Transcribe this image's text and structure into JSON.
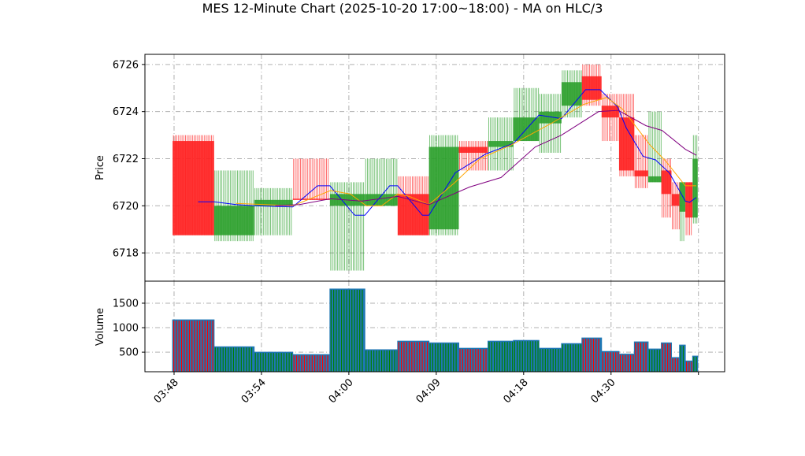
{
  "chart_data": [
    {
      "type": "candlestick",
      "title": "MES 12-Minute Chart (2025-10-20 17:00~18:00) - MA on HLC/3",
      "ylabel": "Price",
      "ylim": [
        6716.8,
        6726.43
      ],
      "yticks": [
        6718,
        6720,
        6722,
        6724,
        6726
      ],
      "x_units": "bar index",
      "xlim": [
        -4,
        75.6
      ],
      "xticks": [
        {
          "x": 0,
          "label": "03:48"
        },
        {
          "x": 12,
          "label": "03:54"
        },
        {
          "x": 24,
          "label": "04:00"
        },
        {
          "x": 36,
          "label": "04:09"
        },
        {
          "x": 48,
          "label": "04:18"
        },
        {
          "x": 60,
          "label": "04:30"
        },
        {
          "x": 72,
          "label": ""
        }
      ],
      "grid": true,
      "up_color": "#2ca02c",
      "down_color": "#ff2020",
      "candles": [
        {
          "x0": -0.2,
          "x1": 5.5,
          "open": 6722.75,
          "high": 6723.0,
          "low": 6718.75,
          "close": 6718.75
        },
        {
          "x0": 5.5,
          "x1": 11.0,
          "open": 6718.75,
          "high": 6721.5,
          "low": 6718.5,
          "close": 6720.0
        },
        {
          "x0": 11.0,
          "x1": 16.3,
          "open": 6720.0,
          "high": 6720.75,
          "low": 6718.75,
          "close": 6720.25
        },
        {
          "x0": 16.3,
          "x1": 21.4,
          "open": 6720.3,
          "high": 6722.0,
          "low": 6720.25,
          "close": 6720.25
        },
        {
          "x0": 21.4,
          "x1": 26.2,
          "open": 6720.0,
          "high": 6721.0,
          "low": 6717.25,
          "close": 6720.5
        },
        {
          "x0": 26.2,
          "x1": 30.7,
          "open": 6720.0,
          "high": 6722.0,
          "low": 6720.0,
          "close": 6720.5
        },
        {
          "x0": 30.7,
          "x1": 35.0,
          "open": 6720.5,
          "high": 6721.25,
          "low": 6718.75,
          "close": 6718.75
        },
        {
          "x0": 35.0,
          "x1": 39.1,
          "open": 6719.0,
          "high": 6723.0,
          "low": 6718.75,
          "close": 6722.5
        },
        {
          "x0": 39.1,
          "x1": 43.1,
          "open": 6722.5,
          "high": 6722.75,
          "low": 6721.5,
          "close": 6722.25
        },
        {
          "x0": 43.1,
          "x1": 46.6,
          "open": 6722.5,
          "high": 6723.75,
          "low": 6721.5,
          "close": 6722.75
        },
        {
          "x0": 46.6,
          "x1": 50.1,
          "open": 6722.75,
          "high": 6725.0,
          "low": 6722.75,
          "close": 6723.75
        },
        {
          "x0": 50.1,
          "x1": 53.2,
          "open": 6723.5,
          "high": 6724.75,
          "low": 6722.25,
          "close": 6724.0
        },
        {
          "x0": 53.2,
          "x1": 56.0,
          "open": 6724.25,
          "high": 6725.75,
          "low": 6723.75,
          "close": 6725.25
        },
        {
          "x0": 56.0,
          "x1": 58.7,
          "open": 6725.5,
          "high": 6726.0,
          "low": 6724.25,
          "close": 6724.5
        },
        {
          "x0": 58.7,
          "x1": 61.1,
          "open": 6724.25,
          "high": 6724.75,
          "low": 6722.75,
          "close": 6723.75
        },
        {
          "x0": 61.1,
          "x1": 63.2,
          "open": 6723.75,
          "high": 6724.75,
          "low": 6721.25,
          "close": 6721.5
        },
        {
          "x0": 63.2,
          "x1": 65.1,
          "open": 6721.5,
          "high": 6723.0,
          "low": 6720.75,
          "close": 6721.25
        },
        {
          "x0": 65.1,
          "x1": 66.9,
          "open": 6721.0,
          "high": 6724.0,
          "low": 6721.0,
          "close": 6721.25
        },
        {
          "x0": 66.9,
          "x1": 68.3,
          "open": 6721.5,
          "high": 6722.0,
          "low": 6719.5,
          "close": 6720.5
        },
        {
          "x0": 68.3,
          "x1": 69.4,
          "open": 6720.5,
          "high": 6721.0,
          "low": 6719.0,
          "close": 6720.0
        },
        {
          "x0": 69.4,
          "x1": 70.2,
          "open": 6719.75,
          "high": 6721.0,
          "low": 6718.5,
          "close": 6721.0
        },
        {
          "x0": 70.2,
          "x1": 71.2,
          "open": 6721.0,
          "high": 6721.0,
          "low": 6718.75,
          "close": 6719.5
        },
        {
          "x0": 71.2,
          "x1": 71.9,
          "open": 6719.5,
          "high": 6723.0,
          "low": 6719.25,
          "close": 6722.0
        }
      ],
      "ma_series": [
        {
          "name": "MA short",
          "color": "#0000ff",
          "points": [
            [
              3.3,
              6720.17
            ],
            [
              5.5,
              6720.17
            ],
            [
              8.5,
              6720.05
            ],
            [
              11,
              6720.0
            ],
            [
              16.3,
              6719.95
            ],
            [
              19.7,
              6720.85
            ],
            [
              21.4,
              6720.85
            ],
            [
              24.8,
              6719.6
            ],
            [
              26.2,
              6719.6
            ],
            [
              29.6,
              6720.85
            ],
            [
              30.7,
              6720.85
            ],
            [
              34.1,
              6719.6
            ],
            [
              35,
              6719.6
            ],
            [
              38.6,
              6721.4
            ],
            [
              42.8,
              6722.2
            ],
            [
              46.6,
              6722.65
            ],
            [
              50.1,
              6723.85
            ],
            [
              53.2,
              6723.7
            ],
            [
              56.5,
              6724.93
            ],
            [
              58.5,
              6724.93
            ],
            [
              60.9,
              6724.2
            ],
            [
              62.1,
              6723.3
            ],
            [
              64.4,
              6722.1
            ],
            [
              66.1,
              6721.95
            ],
            [
              68,
              6721.4
            ],
            [
              70.2,
              6720.2
            ],
            [
              70.8,
              6720.15
            ],
            [
              71.7,
              6720.35
            ]
          ]
        },
        {
          "name": "MA mid",
          "color": "#ffa500",
          "points": [
            [
              8.5,
              6720.1
            ],
            [
              16.3,
              6720.0
            ],
            [
              21.5,
              6720.65
            ],
            [
              24.2,
              6720.5
            ],
            [
              26.4,
              6720.0
            ],
            [
              28.5,
              6720.0
            ],
            [
              30.7,
              6720.5
            ],
            [
              32.3,
              6720.4
            ],
            [
              35,
              6720.05
            ],
            [
              38.6,
              6721.0
            ],
            [
              42,
              6722.0
            ],
            [
              46.4,
              6722.6
            ],
            [
              51.8,
              6723.5
            ],
            [
              56.2,
              6724.3
            ],
            [
              59.4,
              6724.6
            ],
            [
              61.6,
              6724.1
            ],
            [
              65.3,
              6722.6
            ],
            [
              67.5,
              6721.9
            ],
            [
              70.2,
              6720.85
            ],
            [
              71.7,
              6720.85
            ]
          ]
        },
        {
          "name": "MA long",
          "color": "#800080",
          "points": [
            [
              13.9,
              6720.0
            ],
            [
              17.2,
              6720.05
            ],
            [
              21.5,
              6720.3
            ],
            [
              25.8,
              6720.2
            ],
            [
              30.7,
              6720.4
            ],
            [
              35,
              6720.05
            ],
            [
              40.6,
              6720.8
            ],
            [
              44.9,
              6721.2
            ],
            [
              49.6,
              6722.5
            ],
            [
              53.2,
              6723.0
            ],
            [
              58.3,
              6724.0
            ],
            [
              61,
              6724.05
            ],
            [
              64.8,
              6723.4
            ],
            [
              67,
              6723.2
            ],
            [
              70.2,
              6722.4
            ],
            [
              71.7,
              6722.15
            ]
          ]
        }
      ]
    },
    {
      "type": "bar",
      "ylabel": "Volume",
      "ylim": [
        100,
        1950
      ],
      "yticks": [
        500,
        1000,
        1500
      ],
      "bar_color": "#1f77b4",
      "volumes": [
        1160,
        610,
        500,
        450,
        1790,
        550,
        725,
        690,
        580,
        725,
        740,
        580,
        675,
        790,
        515,
        460,
        710,
        565,
        690,
        390,
        645,
        320,
        420
      ]
    }
  ]
}
